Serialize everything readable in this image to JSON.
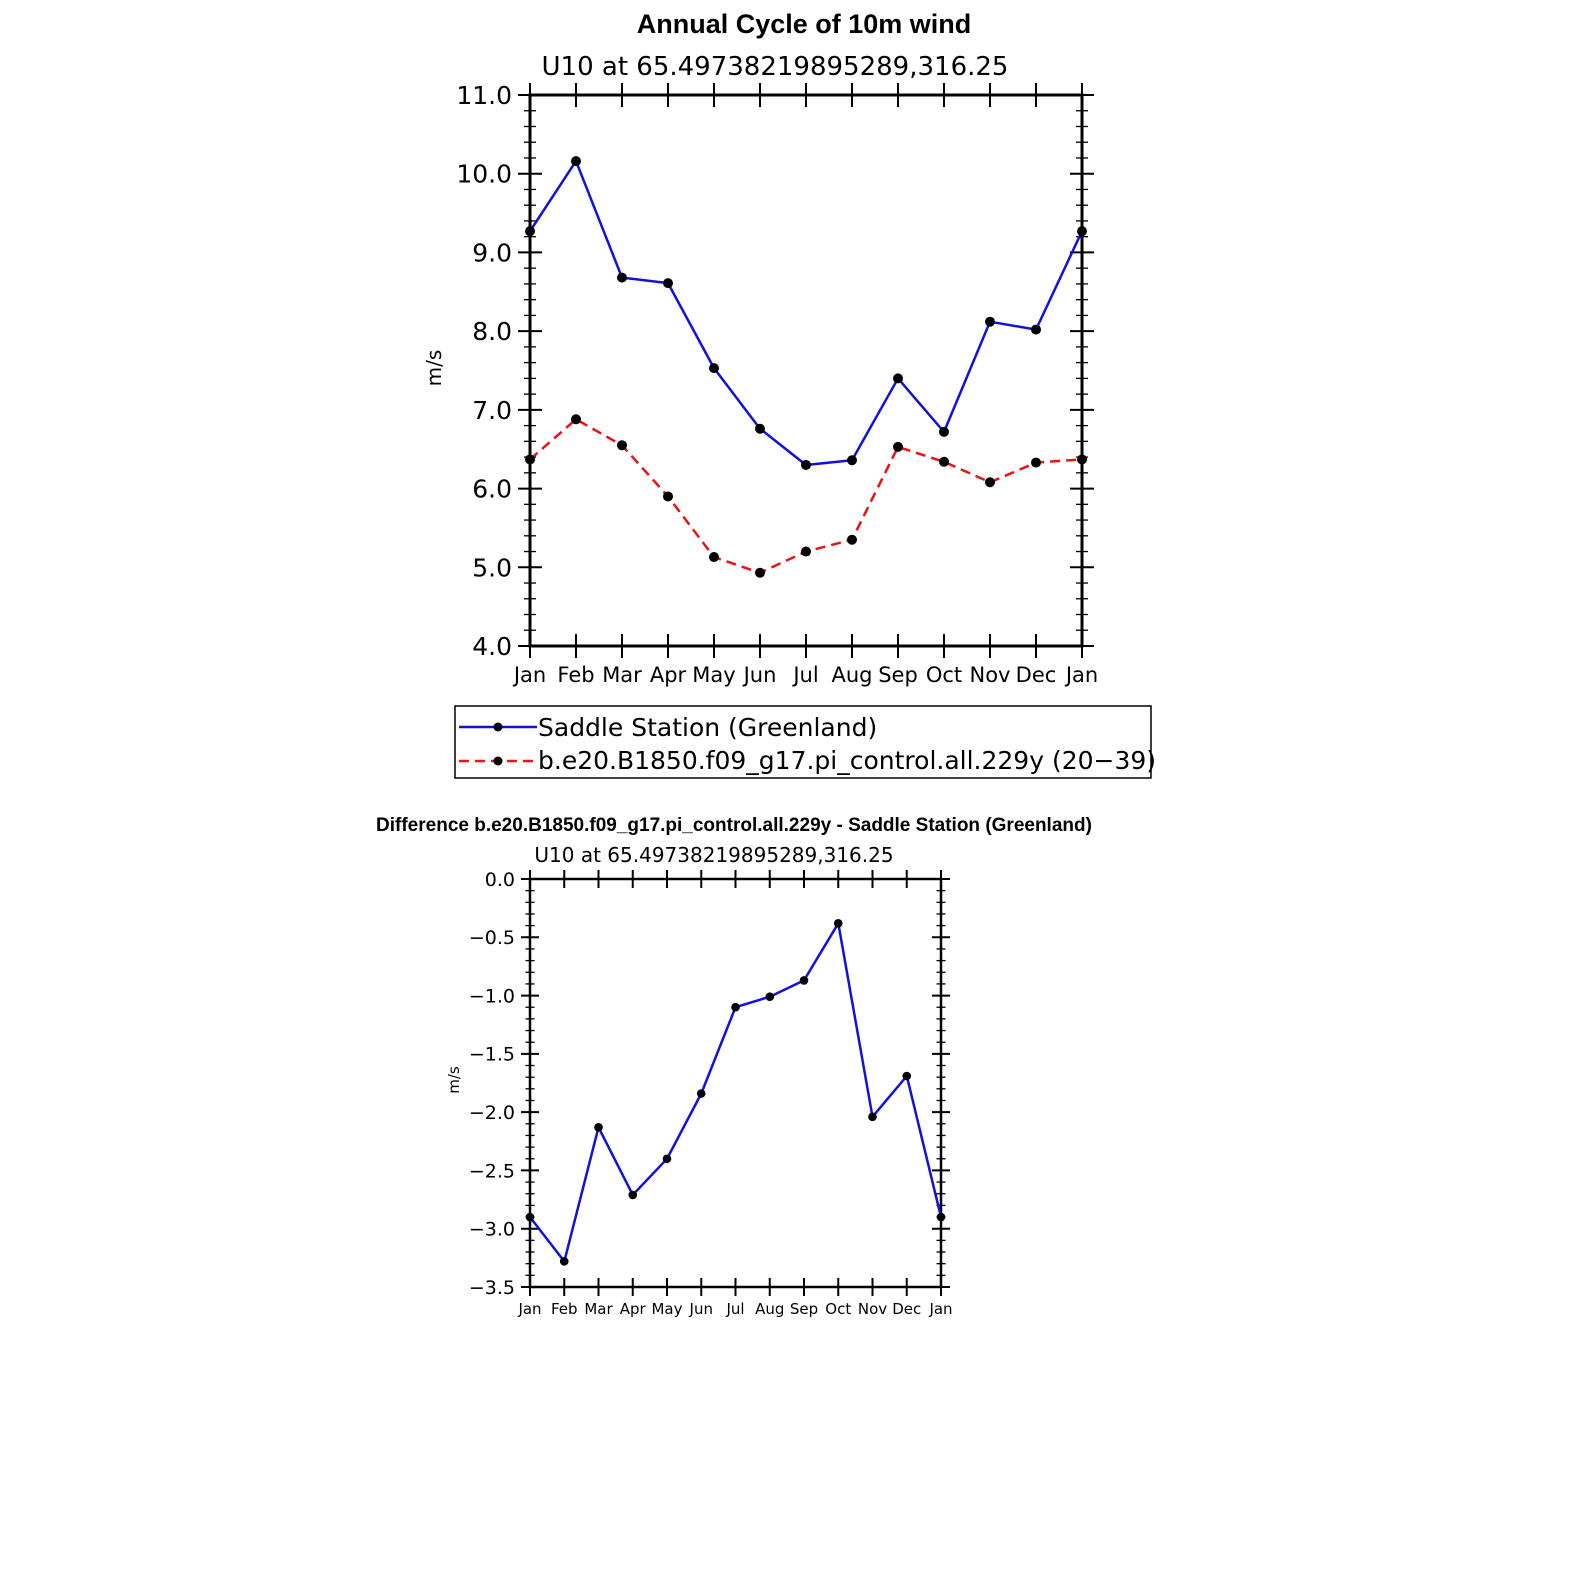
{
  "main_title": "Annual Cycle of 10m wind",
  "diff_title": "Difference b.e20.B1850.f09_g17.pi_control.all.229y - Saddle Station (Greenland)",
  "colors": {
    "obs": "#1010e0",
    "model": "#ee1111",
    "marker": "#000000",
    "axis": "#000000"
  },
  "chart_data": [
    {
      "type": "line",
      "subtitle": "U10  at  65.49738219895289,316.25",
      "xlabel": "",
      "ylabel": "m/s",
      "categories": [
        "Jan",
        "Feb",
        "Mar",
        "Apr",
        "May",
        "Jun",
        "Jul",
        "Aug",
        "Sep",
        "Oct",
        "Nov",
        "Dec",
        "Jan"
      ],
      "ylim": [
        4.0,
        11.0
      ],
      "yticks": [
        "4.0",
        "5.0",
        "6.0",
        "7.0",
        "8.0",
        "9.0",
        "10.0",
        "11.0"
      ],
      "grid": false,
      "legend_position": "bottom",
      "series": [
        {
          "name": "Saddle Station (Greenland)",
          "style": "solid",
          "values": [
            9.27,
            10.16,
            8.68,
            8.61,
            7.53,
            6.76,
            6.3,
            6.36,
            7.4,
            6.72,
            8.12,
            8.02,
            9.27
          ]
        },
        {
          "name": "b.e20.B1850.f09_g17.pi_control.all.229y (20−39)",
          "style": "dashed",
          "values": [
            6.37,
            6.88,
            6.55,
            5.9,
            5.13,
            4.93,
            5.2,
            5.35,
            6.53,
            6.34,
            6.08,
            6.33,
            6.37
          ]
        }
      ]
    },
    {
      "type": "line",
      "subtitle": "U10  at  65.49738219895289,316.25",
      "xlabel": "",
      "ylabel": "m/s",
      "categories": [
        "Jan",
        "Feb",
        "Mar",
        "Apr",
        "May",
        "Jun",
        "Jul",
        "Aug",
        "Sep",
        "Oct",
        "Nov",
        "Dec",
        "Jan"
      ],
      "ylim": [
        -3.5,
        0.0
      ],
      "yticks": [
        "−3.5",
        "−3.0",
        "−2.5",
        "−2.0",
        "−1.5",
        "−1.0",
        "−0.5",
        "0.0"
      ],
      "grid": false,
      "series": [
        {
          "style": "solid",
          "values": [
            -2.9,
            -3.28,
            -2.13,
            -2.71,
            -2.4,
            -1.84,
            -1.1,
            -1.01,
            -0.87,
            -0.38,
            -2.04,
            -1.69,
            -2.9
          ]
        }
      ]
    }
  ]
}
